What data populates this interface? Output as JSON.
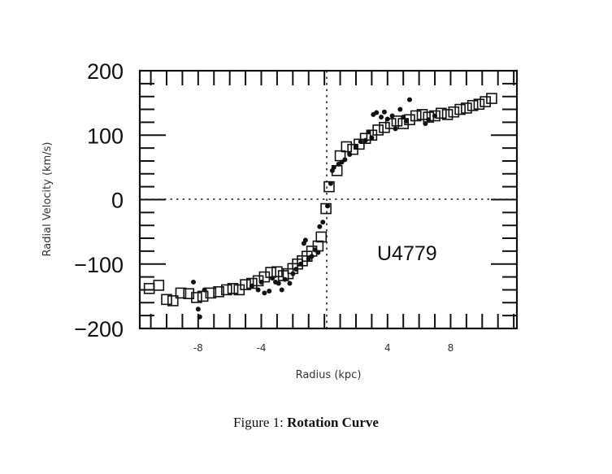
{
  "caption": {
    "prefix": "Figure 1: ",
    "title": "Rotation Curve"
  },
  "chart_data": {
    "type": "scatter",
    "title": "",
    "annotation": "U4779",
    "xlabel": "Radius (kpc)",
    "ylabel": "Radial Velocity (km/s)",
    "xlim": [
      -11.7,
      12.2
    ],
    "ylim": [
      -200,
      200
    ],
    "x_ticks": [
      -8,
      -4,
      4,
      8
    ],
    "x_tick_labels": [
      "-8",
      "-4",
      "4",
      "8"
    ],
    "y_ticks": [
      200,
      100,
      0,
      -100,
      -200
    ],
    "y_tick_labels": [
      "200",
      "100",
      "0",
      "−100",
      "−200"
    ],
    "grid": false,
    "zero_lines": {
      "horizontal": 0,
      "vertical": 0,
      "style": "dotted"
    },
    "legend": null,
    "series": [
      {
        "name": "open squares",
        "marker": "square-open",
        "points": [
          [
            -11.1,
            -138
          ],
          [
            -10.5,
            -133
          ],
          [
            -10.0,
            -155
          ],
          [
            -9.6,
            -157
          ],
          [
            -9.1,
            -145
          ],
          [
            -8.6,
            -146
          ],
          [
            -8.1,
            -152
          ],
          [
            -7.7,
            -150
          ],
          [
            -7.2,
            -145
          ],
          [
            -6.7,
            -143
          ],
          [
            -6.2,
            -140
          ],
          [
            -5.8,
            -138
          ],
          [
            -5.4,
            -140
          ],
          [
            -5.0,
            -132
          ],
          [
            -4.6,
            -130
          ],
          [
            -4.2,
            -126
          ],
          [
            -3.8,
            -120
          ],
          [
            -3.4,
            -113
          ],
          [
            -3.0,
            -112
          ],
          [
            -2.6,
            -118
          ],
          [
            -2.3,
            -115
          ],
          [
            -2.0,
            -107
          ],
          [
            -1.7,
            -100
          ],
          [
            -1.4,
            -95
          ],
          [
            -1.1,
            -88
          ],
          [
            -0.8,
            -80
          ],
          [
            -0.4,
            -72
          ],
          [
            -0.2,
            -58
          ],
          [
            0.1,
            -14
          ],
          [
            0.3,
            20
          ],
          [
            0.8,
            45
          ],
          [
            1.0,
            68
          ],
          [
            1.4,
            82
          ],
          [
            1.8,
            78
          ],
          [
            2.2,
            86
          ],
          [
            2.6,
            95
          ],
          [
            3.0,
            100
          ],
          [
            3.4,
            108
          ],
          [
            3.8,
            112
          ],
          [
            4.2,
            118
          ],
          [
            4.6,
            122
          ],
          [
            5.0,
            118
          ],
          [
            5.4,
            124
          ],
          [
            5.8,
            130
          ],
          [
            6.2,
            132
          ],
          [
            6.6,
            128
          ],
          [
            7.0,
            130
          ],
          [
            7.4,
            134
          ],
          [
            7.8,
            132
          ],
          [
            8.2,
            136
          ],
          [
            8.6,
            140
          ],
          [
            9.0,
            142
          ],
          [
            9.4,
            146
          ],
          [
            9.8,
            148
          ],
          [
            10.2,
            152
          ],
          [
            10.6,
            157
          ]
        ]
      },
      {
        "name": "filled dots",
        "marker": "dot",
        "points": [
          [
            -8.3,
            -128
          ],
          [
            -8.0,
            -170
          ],
          [
            -7.9,
            -182
          ],
          [
            -7.6,
            -140
          ],
          [
            -4.6,
            -134
          ],
          [
            -4.2,
            -140
          ],
          [
            -4.0,
            -128
          ],
          [
            -3.8,
            -145
          ],
          [
            -3.5,
            -142
          ],
          [
            -3.3,
            -122
          ],
          [
            -3.1,
            -128
          ],
          [
            -2.9,
            -130
          ],
          [
            -2.7,
            -140
          ],
          [
            -2.5,
            -124
          ],
          [
            -2.2,
            -130
          ],
          [
            -2.0,
            -115
          ],
          [
            -1.8,
            -108
          ],
          [
            -1.5,
            -100
          ],
          [
            -1.3,
            -68
          ],
          [
            -1.2,
            -63
          ],
          [
            -1.0,
            -92
          ],
          [
            -0.8,
            -88
          ],
          [
            -0.6,
            -78
          ],
          [
            -0.4,
            -82
          ],
          [
            -0.3,
            -42
          ],
          [
            -0.1,
            -35
          ],
          [
            0.2,
            -10
          ],
          [
            0.4,
            25
          ],
          [
            0.5,
            45
          ],
          [
            0.6,
            50
          ],
          [
            0.9,
            55
          ],
          [
            1.1,
            58
          ],
          [
            1.3,
            62
          ],
          [
            1.6,
            70
          ],
          [
            2.0,
            82
          ],
          [
            2.3,
            90
          ],
          [
            2.6,
            92
          ],
          [
            2.8,
            105
          ],
          [
            3.0,
            96
          ],
          [
            3.1,
            132
          ],
          [
            3.3,
            135
          ],
          [
            3.6,
            128
          ],
          [
            3.8,
            136
          ],
          [
            4.0,
            125
          ],
          [
            4.3,
            130
          ],
          [
            4.5,
            110
          ],
          [
            4.8,
            140
          ],
          [
            5.0,
            128
          ],
          [
            5.2,
            122
          ],
          [
            5.4,
            155
          ],
          [
            6.4,
            118
          ],
          [
            6.6,
            124
          ],
          [
            7.0,
            130
          ]
        ]
      }
    ]
  }
}
